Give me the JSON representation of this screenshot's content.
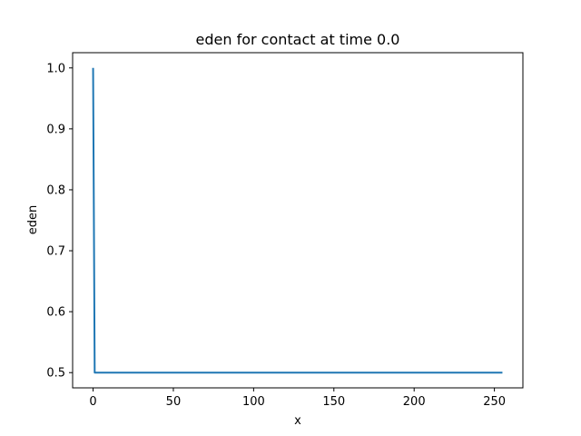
{
  "chart_data": {
    "type": "line",
    "title": "eden for contact at time 0.0",
    "xlabel": "x",
    "ylabel": "eden",
    "xlim": [
      -12.75,
      267.75
    ],
    "ylim": [
      0.475,
      1.025
    ],
    "xticks": [
      0,
      50,
      100,
      150,
      200,
      250
    ],
    "xtick_labels": [
      "0",
      "50",
      "100",
      "150",
      "200",
      "250"
    ],
    "yticks": [
      0.5,
      0.6,
      0.7,
      0.8,
      0.9,
      1.0
    ],
    "ytick_labels": [
      "0.5",
      "0.6",
      "0.7",
      "0.8",
      "0.9",
      "1.0"
    ],
    "grid": false,
    "series": [
      {
        "color": "#1f77b4",
        "x": [
          0,
          1,
          255
        ],
        "y": [
          1.0,
          0.5,
          0.5
        ]
      }
    ]
  }
}
